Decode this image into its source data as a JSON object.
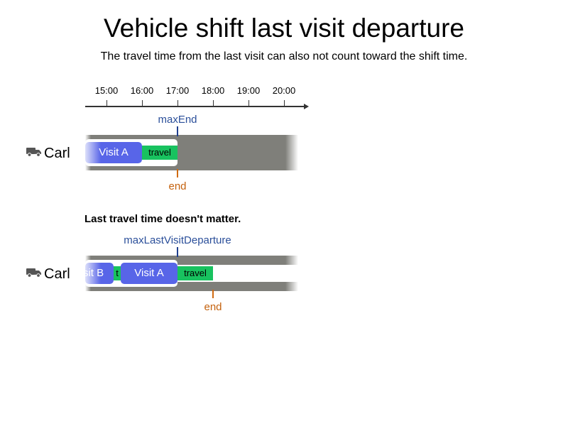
{
  "title": "Vehicle shift last visit departure",
  "subtitle": "The travel time from the last visit can also not count toward the shift time.",
  "timeline": {
    "ticks": [
      "15:00",
      "16:00",
      "17:00",
      "18:00",
      "19:00",
      "20:00"
    ]
  },
  "scenario1": {
    "vehicle": {
      "icon": "truck-icon",
      "name": "Carl"
    },
    "top_marker_label": "maxEnd",
    "visit_label": "Visit A",
    "travel_label": "travel",
    "end_label": "end"
  },
  "note": "Last travel time doesn't matter.",
  "scenario2": {
    "vehicle": {
      "icon": "truck-icon",
      "name": "Carl"
    },
    "top_marker_label": "maxLastVisitDeparture",
    "visit_b_label": "Visit B",
    "travel_short_label": "t",
    "visit_label": "Visit A",
    "travel_label": "travel",
    "end_label": "end"
  },
  "colors": {
    "visit": "#5865e8",
    "travel": "#18c25f",
    "shift": "#7f7f7a",
    "marker_blue": "#1f3f8f",
    "marker_orange": "#d06a10"
  }
}
